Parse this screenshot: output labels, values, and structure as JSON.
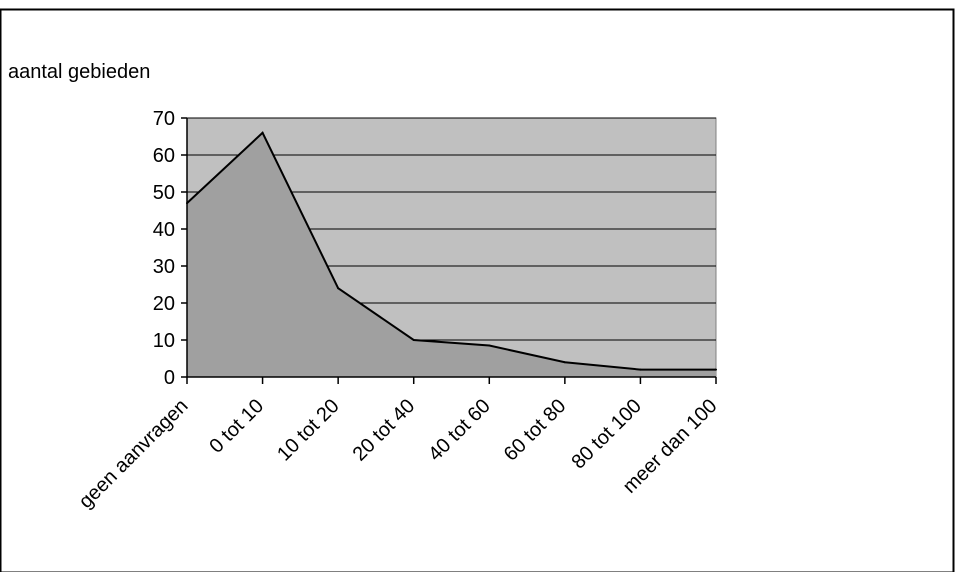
{
  "chart_data": {
    "type": "area",
    "title": "",
    "ylabel": "aantal gebieden",
    "xlabel": "",
    "categories": [
      "geen aanvragen",
      "0 tot 10",
      "10 tot 20",
      "20 tot 40",
      "40 tot 60",
      "60 tot 80",
      "80 tot 100",
      "meer dan 100"
    ],
    "values": [
      47,
      66,
      24,
      10,
      8.5,
      4,
      2,
      2
    ],
    "ylim": [
      0,
      70
    ],
    "yticks": [
      0,
      10,
      20,
      30,
      40,
      50,
      60,
      70
    ],
    "grid": true,
    "legend": "none",
    "colors": {
      "plot_background": "#c0c0c0",
      "area_fill": "#a0a0a0",
      "line": "#000000",
      "gridline": "#000000"
    }
  }
}
